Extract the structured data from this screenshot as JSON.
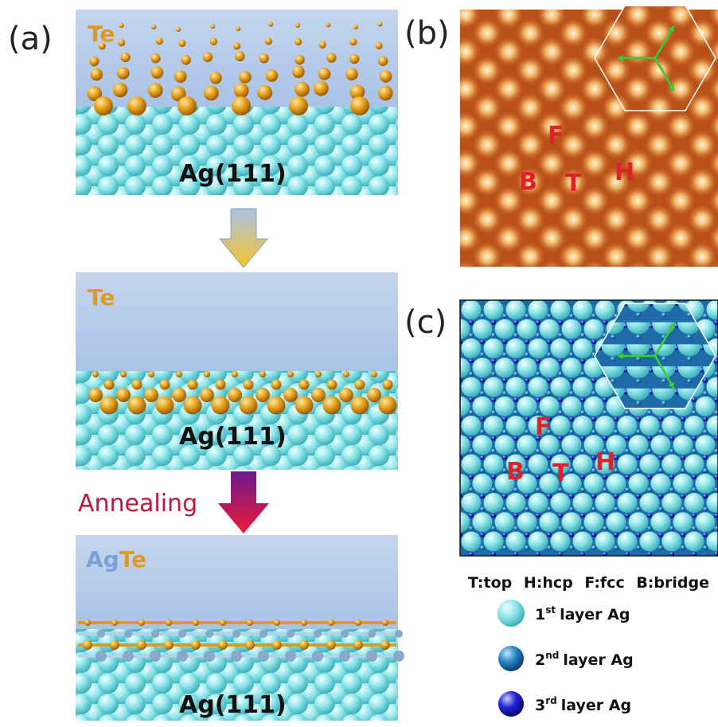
{
  "panel_a": {
    "label": "(a)",
    "step1": {
      "adsorbate": "Te",
      "substrate": "Ag(111)"
    },
    "step2": {
      "adsorbate": "Te",
      "substrate": "Ag(111)"
    },
    "process": "Annealing",
    "step3": {
      "adsorbate_ag": "Ag",
      "adsorbate_te": "Te",
      "substrate": "Ag(111)"
    }
  },
  "panel_b": {
    "label": "(b)",
    "sites": [
      "F",
      "B",
      "T",
      "H"
    ]
  },
  "panel_c": {
    "label": "(c)",
    "sites": [
      "F",
      "B",
      "T",
      "H"
    ]
  },
  "legend": {
    "sites": "T:top H:hcp F:fcc B:bridge",
    "layers": [
      {
        "number": "1",
        "suffix": "st",
        "text": "layer Ag"
      },
      {
        "number": "2",
        "suffix": "nd",
        "text": "layer Ag"
      },
      {
        "number": "3",
        "suffix": "rd",
        "text": "layer Ag"
      }
    ]
  }
}
